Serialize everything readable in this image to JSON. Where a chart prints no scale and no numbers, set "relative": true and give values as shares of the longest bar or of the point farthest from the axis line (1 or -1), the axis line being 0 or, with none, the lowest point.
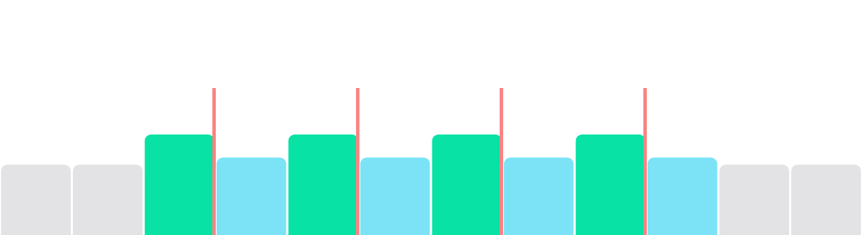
{
  "chart_data": {
    "type": "bar",
    "relative": true,
    "categories": [
      null,
      null,
      null,
      null,
      null,
      null,
      null,
      null,
      null,
      null,
      null,
      null
    ],
    "colors": [
      "#e3e3e5",
      "#e3e3e5",
      "#08e2a4",
      "#7ce3f6",
      "#08e2a4",
      "#7ce3f6",
      "#08e2a4",
      "#7ce3f6",
      "#08e2a4",
      "#7ce3f6",
      "#e3e3e5",
      "#e3e3e5"
    ],
    "values": [
      0.7,
      0.7,
      1,
      0.77,
      1,
      0.77,
      1,
      0.77,
      1,
      0.77,
      0.7,
      0.7
    ]
  }
}
